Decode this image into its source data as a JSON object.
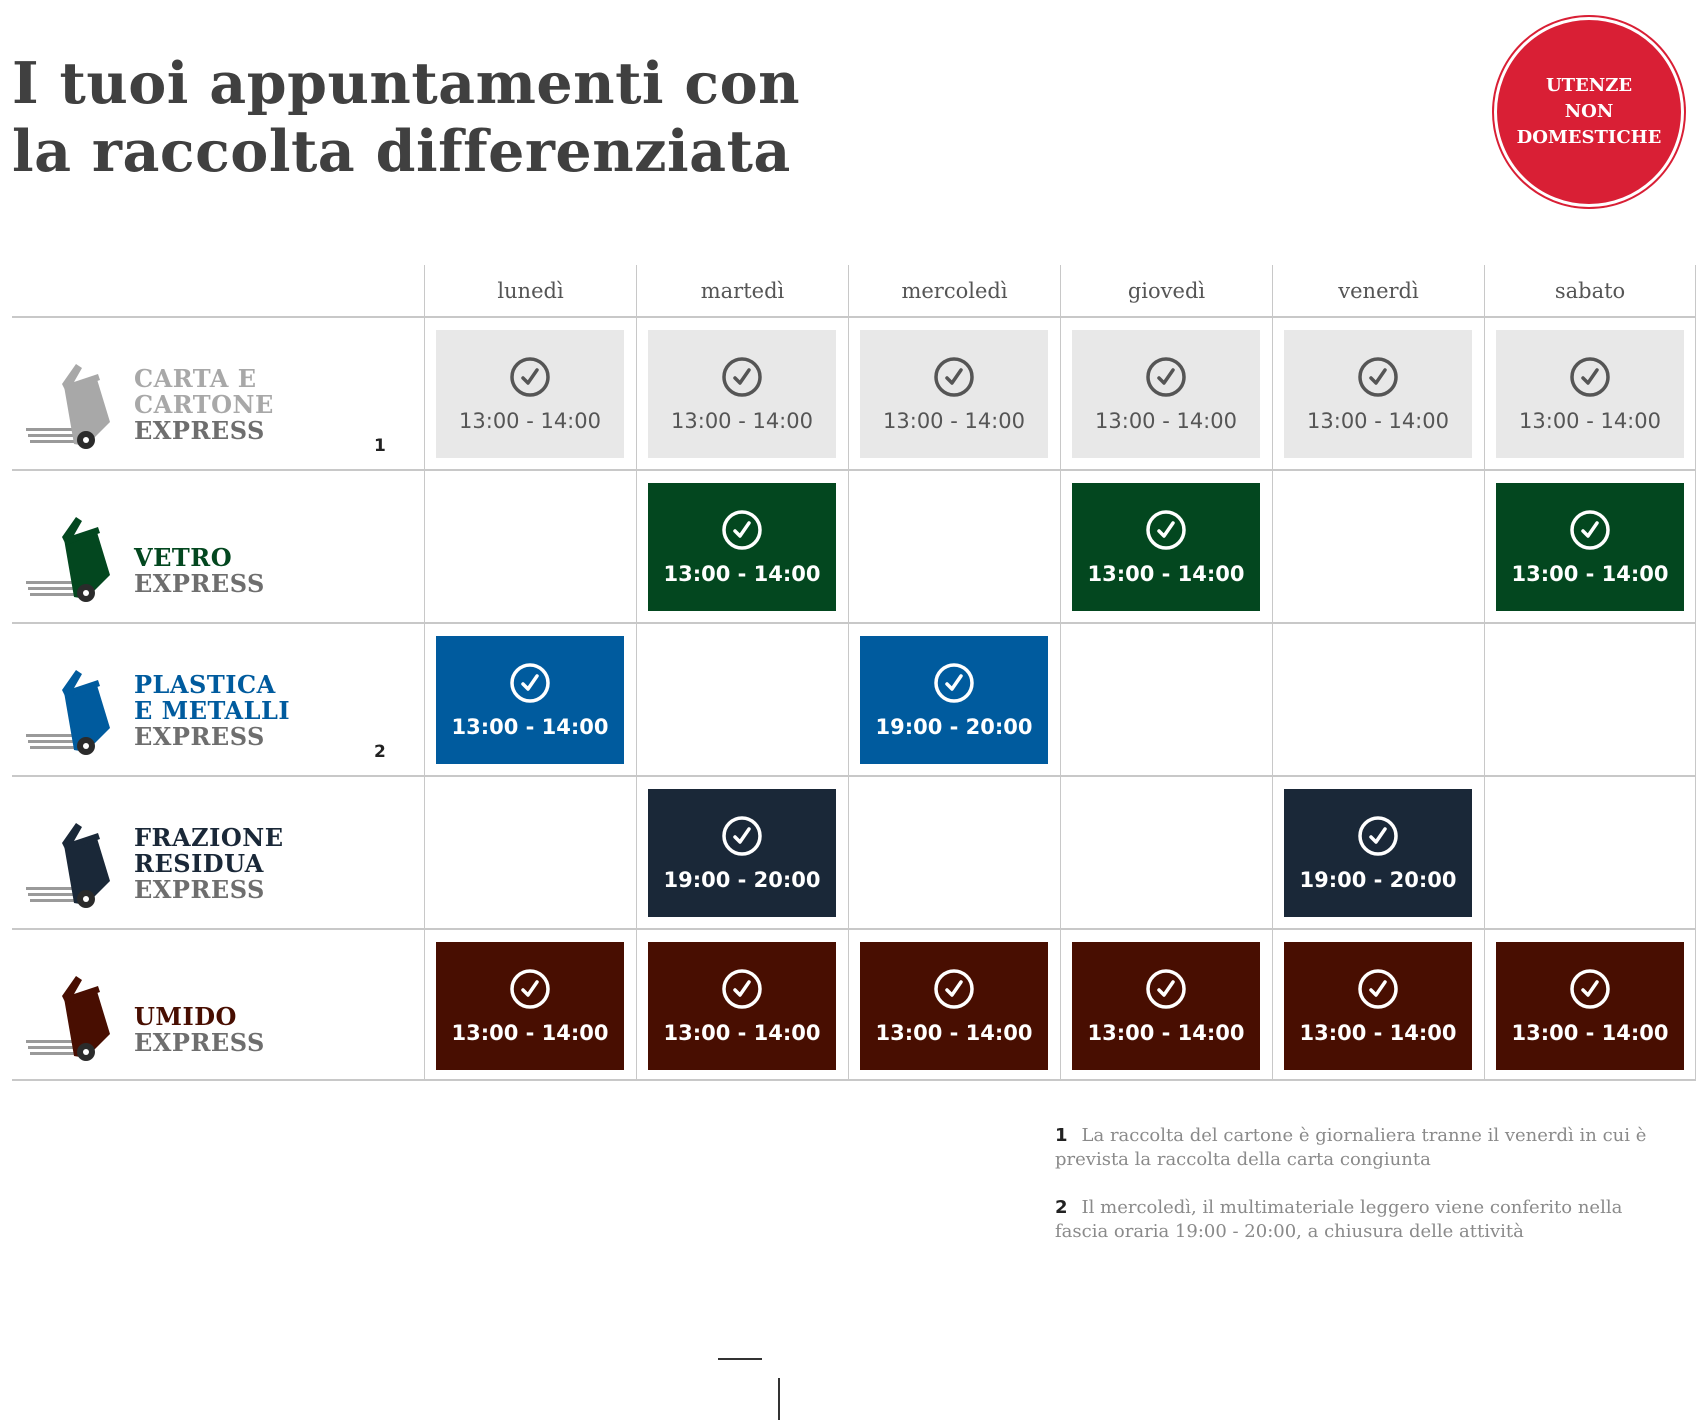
{
  "title": {
    "line1": "I tuoi appuntamenti con",
    "line2": "la raccolta differenziata"
  },
  "badge": {
    "line1": "UTENZE",
    "line2": "NON",
    "line3": "DOMESTICHE",
    "color": "#d91f35"
  },
  "days": [
    "lunedì",
    "martedì",
    "mercoledì",
    "giovedì",
    "venerdì",
    "sabato"
  ],
  "categories": [
    {
      "key": "carta",
      "color": "#a8a8a8",
      "icon": "paper-bin-icon",
      "name_lines": [
        "CARTA E",
        "CARTONE"
      ],
      "express": "EXPRESS",
      "note": "1",
      "slots": [
        "13:00 - 14:00",
        "13:00 - 14:00",
        "13:00 - 14:00",
        "13:00 - 14:00",
        "13:00 - 14:00",
        "13:00 - 14:00"
      ]
    },
    {
      "key": "vetro",
      "color": "#03471f",
      "icon": "glass-bin-icon",
      "name_lines": [
        "VETRO"
      ],
      "express": "EXPRESS",
      "note": "",
      "slots": [
        "",
        "13:00 - 14:00",
        "",
        "13:00 - 14:00",
        "",
        "13:00 - 14:00"
      ]
    },
    {
      "key": "plastica",
      "color": "#005b9e",
      "icon": "plastic-bin-icon",
      "name_lines": [
        "PLASTICA",
        "E METALLI"
      ],
      "express": "EXPRESS",
      "note": "2",
      "slots": [
        "13:00 - 14:00",
        "",
        "19:00 - 20:00",
        "",
        "",
        ""
      ]
    },
    {
      "key": "residuo",
      "color": "#1a2838",
      "icon": "residual-bin-icon",
      "name_lines": [
        "FRAZIONE",
        "RESIDUA"
      ],
      "express": "EXPRESS",
      "note": "",
      "slots": [
        "",
        "19:00 - 20:00",
        "",
        "",
        "19:00 - 20:00",
        ""
      ]
    },
    {
      "key": "umido",
      "color": "#480e01",
      "icon": "organic-bin-icon",
      "name_lines": [
        "UMIDO"
      ],
      "express": "EXPRESS",
      "note": "",
      "slots": [
        "13:00 - 14:00",
        "13:00 - 14:00",
        "13:00 - 14:00",
        "13:00 - 14:00",
        "13:00 - 14:00",
        "13:00 - 14:00"
      ]
    }
  ],
  "footnotes": [
    {
      "num": "1",
      "text": "La raccolta del cartone è giornaliera tranne il venerdì in cui è prevista la raccolta della carta congiunta"
    },
    {
      "num": "2",
      "text": "Il mercoledì, il multimateriale leggero viene conferito nella fascia oraria 19:00 - 20:00, a chiusura delle attività"
    }
  ]
}
